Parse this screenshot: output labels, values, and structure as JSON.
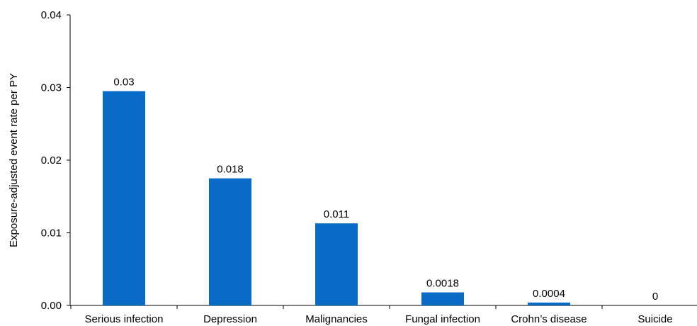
{
  "chart_data": {
    "type": "bar",
    "title": "",
    "xlabel": "",
    "ylabel": "Exposure-adjusted event rate per PY",
    "ylim": [
      0,
      0.04
    ],
    "yticks": [
      "0.00",
      "0.01",
      "0.02",
      "0.03",
      "0.04"
    ],
    "grid": false,
    "legend": "none",
    "bar_color": "#0a6bc7",
    "categories": [
      "Serious infection",
      "Depression",
      "Malignancies",
      "Fungal infection",
      "Crohn’s disease",
      "Suicide"
    ],
    "values": [
      0.0295,
      0.0175,
      0.0113,
      0.0018,
      0.0004,
      0
    ],
    "data_labels": [
      "0.03",
      "0.018",
      "0.011",
      "0.0018",
      "0.0004",
      "0"
    ]
  }
}
